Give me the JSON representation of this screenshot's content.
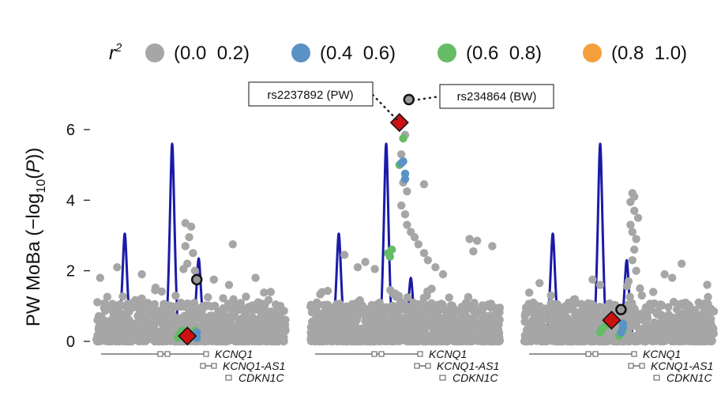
{
  "legend": {
    "title": "r",
    "title_sup": "2",
    "items": [
      {
        "label": "(0.0  0.2)",
        "color": "#a6a6a6"
      },
      {
        "label": "(0.4  0.6)",
        "color": "#5b92c6"
      },
      {
        "label": "(0.6  0.8)",
        "color": "#66bb66"
      },
      {
        "label": "(0.8  1.0)",
        "color": "#f5a03c"
      }
    ]
  },
  "callouts": [
    {
      "label": "rs2237892 (PW)"
    },
    {
      "label": "rs234864 (BW)"
    }
  ],
  "chart_data": {
    "type": "scatter",
    "ylabel_main": "PW MoBa (−log",
    "ylabel_sub": "10",
    "ylabel_tail": "(",
    "ylabel_p": "P",
    "ylabel_end": "))",
    "yticks": [
      0,
      2,
      4,
      6
    ],
    "ylim": [
      -0.3,
      7.5
    ],
    "genes": [
      "KCNQ1",
      "KCNQ1-AS1",
      "CDKN1C"
    ],
    "panels": [
      {
        "name": "left",
        "lead": {
          "x": 0.48,
          "y": 0.15
        },
        "circle": {
          "x": 0.53,
          "y": 1.75
        },
        "recomb": [
          [
            0.15,
            3.05
          ],
          [
            0.4,
            5.6
          ],
          [
            0.54,
            2.35
          ]
        ],
        "highs": [
          [
            0.47,
            3.35
          ],
          [
            0.5,
            3.25
          ],
          [
            0.49,
            2.95
          ],
          [
            0.47,
            2.7
          ],
          [
            0.51,
            2.5
          ],
          [
            0.48,
            2.2
          ],
          [
            0.46,
            2.05
          ],
          [
            0.52,
            2.0
          ],
          [
            0.72,
            2.75
          ],
          [
            0.84,
            1.8
          ],
          [
            0.24,
            1.9
          ],
          [
            0.02,
            1.8
          ],
          [
            0.11,
            2.1
          ],
          [
            0.31,
            1.45
          ],
          [
            0.62,
            1.75
          ],
          [
            0.7,
            1.6
          ],
          [
            0.92,
            1.4
          ]
        ],
        "greens": [
          [
            0.44,
            0.2
          ],
          [
            0.45,
            0.3
          ],
          [
            0.5,
            0.2
          ],
          [
            0.52,
            0.3
          ],
          [
            0.43,
            0.1
          ]
        ],
        "blues": [
          [
            0.53,
            0.1
          ],
          [
            0.53,
            0.25
          ]
        ]
      },
      {
        "name": "middle",
        "lead": {
          "x": 0.47,
          "y": 6.2
        },
        "circle": {
          "x": 0.52,
          "y": 6.85
        },
        "recomb": [
          [
            0.15,
            3.05
          ],
          [
            0.4,
            5.6
          ],
          [
            0.53,
            1.8
          ]
        ],
        "highs": [
          [
            0.5,
            5.85
          ],
          [
            0.48,
            5.3
          ],
          [
            0.49,
            4.5
          ],
          [
            0.51,
            4.25
          ],
          [
            0.6,
            4.45
          ],
          [
            0.48,
            3.85
          ],
          [
            0.5,
            3.6
          ],
          [
            0.51,
            3.3
          ],
          [
            0.53,
            3.1
          ],
          [
            0.55,
            2.95
          ],
          [
            0.57,
            2.75
          ],
          [
            0.6,
            2.5
          ],
          [
            0.62,
            2.3
          ],
          [
            0.66,
            2.1
          ],
          [
            0.7,
            1.9
          ],
          [
            0.84,
            2.9
          ],
          [
            0.88,
            2.85
          ],
          [
            0.86,
            2.55
          ],
          [
            0.96,
            2.7
          ],
          [
            0.18,
            2.45
          ],
          [
            0.25,
            2.1
          ],
          [
            0.29,
            2.25
          ],
          [
            0.34,
            2.05
          ]
        ],
        "greens": [
          [
            0.49,
            5.75
          ],
          [
            0.47,
            5.0
          ],
          [
            0.41,
            2.5
          ],
          [
            0.42,
            2.4
          ],
          [
            0.43,
            2.6
          ]
        ],
        "blues": [
          [
            0.49,
            5.1
          ],
          [
            0.5,
            4.6
          ],
          [
            0.5,
            4.75
          ],
          [
            0.48,
            5.05
          ]
        ]
      },
      {
        "name": "right",
        "lead": {
          "x": 0.46,
          "y": 0.6
        },
        "circle": {
          "x": 0.51,
          "y": 0.9
        },
        "recomb": [
          [
            0.15,
            3.05
          ],
          [
            0.4,
            5.6
          ],
          [
            0.54,
            2.3
          ]
        ],
        "highs": [
          [
            0.57,
            4.2
          ],
          [
            0.58,
            4.1
          ],
          [
            0.56,
            3.95
          ],
          [
            0.58,
            3.7
          ],
          [
            0.6,
            3.5
          ],
          [
            0.56,
            3.3
          ],
          [
            0.57,
            3.1
          ],
          [
            0.59,
            2.9
          ],
          [
            0.58,
            2.6
          ],
          [
            0.57,
            2.3
          ],
          [
            0.59,
            2.0
          ],
          [
            0.55,
            1.7
          ],
          [
            0.61,
            1.5
          ],
          [
            0.62,
            1.3
          ],
          [
            0.83,
            2.2
          ],
          [
            0.74,
            1.9
          ],
          [
            0.78,
            1.8
          ],
          [
            0.36,
            1.75
          ],
          [
            0.4,
            1.6
          ],
          [
            0.08,
            1.65
          ],
          [
            0.14,
            1.3
          ],
          [
            0.02,
            1.0
          ],
          [
            0.92,
            1.1
          ],
          [
            0.68,
            1.4
          ]
        ],
        "greens": [
          [
            0.4,
            0.25
          ],
          [
            0.41,
            0.35
          ],
          [
            0.43,
            0.45
          ],
          [
            0.52,
            0.3
          ],
          [
            0.5,
            0.15
          ]
        ],
        "blues": [
          [
            0.51,
            0.25
          ],
          [
            0.52,
            0.4
          ],
          [
            0.52,
            0.5
          ]
        ]
      }
    ]
  }
}
